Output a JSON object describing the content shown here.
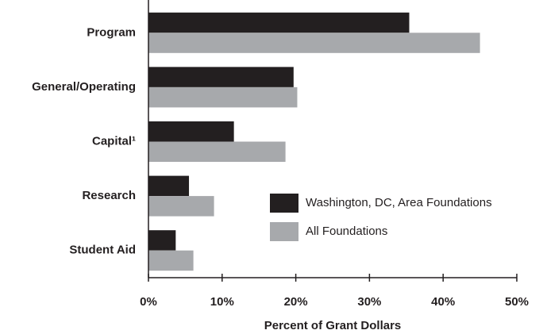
{
  "chart_data": {
    "type": "bar",
    "orientation": "horizontal",
    "x_label": "Percent of Grant Dollars",
    "categories": [
      "Program",
      "General/Operating",
      "Capital¹",
      "Research",
      "Student Aid"
    ],
    "series": [
      {
        "name": "Washington, DC, Area Foundations",
        "color": "#231f20",
        "values": [
          35.4,
          19.7,
          11.6,
          5.5,
          3.7
        ]
      },
      {
        "name": "All Foundations",
        "color": "#a7a9ac",
        "values": [
          45.0,
          20.2,
          18.6,
          8.9,
          6.1
        ]
      }
    ],
    "xlim": [
      0,
      50
    ],
    "xticks": [
      {
        "value": 0,
        "label": "0%"
      },
      {
        "value": 10,
        "label": "10%"
      },
      {
        "value": 20,
        "label": "20%"
      },
      {
        "value": 30,
        "label": "30%"
      },
      {
        "value": 40,
        "label": "40%"
      },
      {
        "value": 50,
        "label": "50%"
      }
    ],
    "legend": "lower right"
  }
}
